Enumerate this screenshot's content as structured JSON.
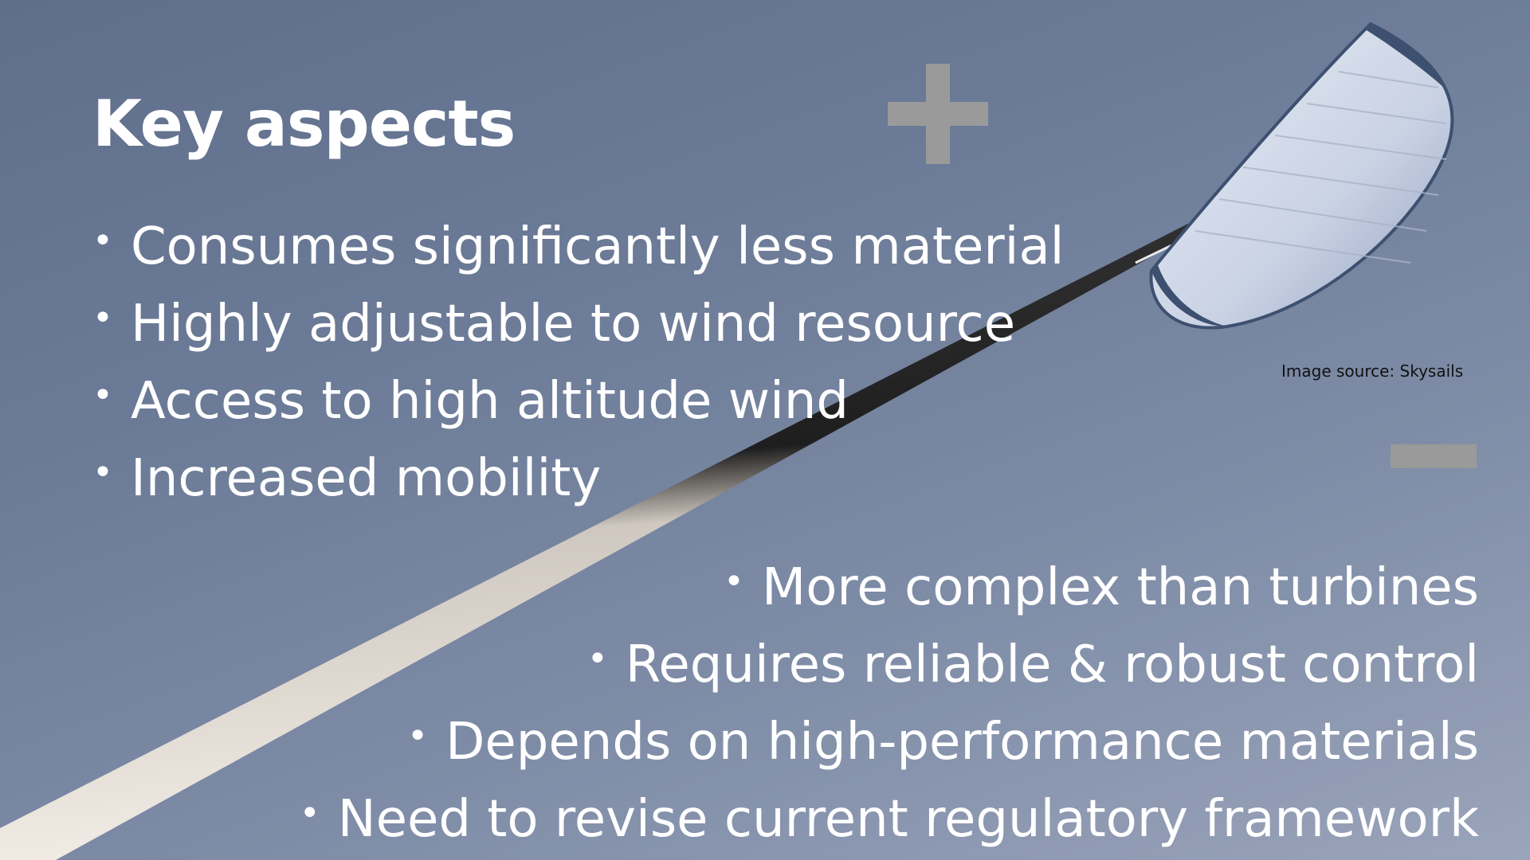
{
  "slide": {
    "title": "Key aspects",
    "pros_symbol": "plus-icon",
    "cons_symbol": "minus-icon",
    "pros": [
      "Consumes significantly less material",
      "Highly adjustable to wind resource",
      "Access to high altitude wind",
      "Increased mobility"
    ],
    "cons": [
      "More complex than turbines",
      "Requires reliable & robust control",
      "Depends on high-performance materials",
      "Need to revise current regulatory framework"
    ],
    "bullet": "•",
    "image_credit": "Image source: Skysails",
    "colors": {
      "text": "#ffffff",
      "symbol": "#9a9a9a",
      "sky": "#6c7b97",
      "credit": "#111111"
    }
  }
}
